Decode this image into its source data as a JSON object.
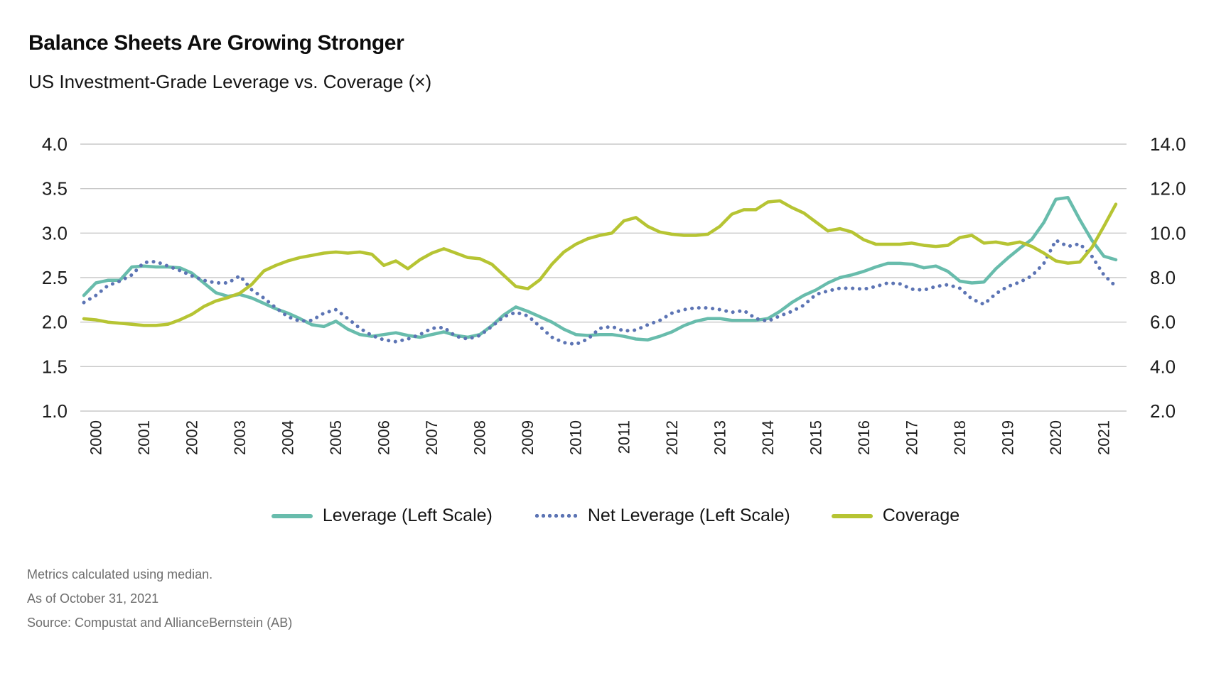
{
  "header": {
    "title": "Balance Sheets Are Growing Stronger",
    "subtitle": "US Investment-Grade Leverage vs. Coverage (×)"
  },
  "footnotes": [
    "Metrics calculated using median.",
    "As of October 31, 2021",
    "Source: Compustat and AllianceBernstein (AB)"
  ],
  "chart_data": {
    "type": "line",
    "title": "Balance Sheets Are Growing Stronger",
    "subtitle": "US Investment-Grade Leverage vs. Coverage (×)",
    "grid": true,
    "legend_position": "bottom",
    "x": {
      "frequency": "quarterly",
      "start": "2000Q1",
      "end": "2021Q3",
      "year_tick_labels": [
        "2000",
        "2001",
        "2002",
        "2003",
        "2004",
        "2005",
        "2006",
        "2007",
        "2008",
        "2009",
        "2010",
        "2011",
        "2012",
        "2013",
        "2014",
        "2015",
        "2016",
        "2017",
        "2018",
        "2019",
        "2020",
        "2021"
      ]
    },
    "left_axis": {
      "range": [
        1.0,
        4.0
      ],
      "tick_values": [
        4.0,
        3.5,
        3.0,
        2.5,
        2.0,
        1.5,
        1.0
      ],
      "tick_labels": [
        "4.0",
        "3.5",
        "3.0",
        "2.5",
        "2.0",
        "1.5",
        "1.0"
      ]
    },
    "right_axis": {
      "range": [
        2.0,
        14.0
      ],
      "tick_values": [
        14.0,
        12.0,
        10.0,
        8.0,
        6.0,
        4.0,
        2.0
      ],
      "tick_labels": [
        "14.0",
        "12.0",
        "10.0",
        "8.0",
        "6.0",
        "4.0",
        "2.0"
      ],
      "mapping_note": "right gridlines share left gridlines: right = 4 x left - 2"
    },
    "colors": {
      "leverage": "#68BCAC",
      "net_leverage": "#5C74B4",
      "coverage": "#B6C433",
      "gridline": "#C9C9C9"
    },
    "series": [
      {
        "name": "Leverage (Left Scale)",
        "axis": "left",
        "style": "solid",
        "color": "#68BCAC",
        "values": [
          2.3,
          2.44,
          2.47,
          2.47,
          2.62,
          2.63,
          2.62,
          2.62,
          2.61,
          2.55,
          2.44,
          2.33,
          2.29,
          2.31,
          2.27,
          2.21,
          2.15,
          2.1,
          2.04,
          1.97,
          1.95,
          2.01,
          1.92,
          1.86,
          1.84,
          1.86,
          1.88,
          1.85,
          1.83,
          1.86,
          1.89,
          1.85,
          1.83,
          1.86,
          1.96,
          2.08,
          2.17,
          2.12,
          2.06,
          2.0,
          1.92,
          1.86,
          1.85,
          1.86,
          1.86,
          1.84,
          1.81,
          1.8,
          1.84,
          1.89,
          1.96,
          2.01,
          2.04,
          2.04,
          2.02,
          2.02,
          2.02,
          2.04,
          2.12,
          2.22,
          2.3,
          2.36,
          2.44,
          2.5,
          2.53,
          2.57,
          2.62,
          2.66,
          2.66,
          2.65,
          2.61,
          2.63,
          2.57,
          2.46,
          2.44,
          2.45,
          2.6,
          2.72,
          2.83,
          2.93,
          3.12,
          3.38,
          3.4,
          3.15,
          2.92,
          2.74,
          2.7
        ]
      },
      {
        "name": "Net Leverage (Left Scale)",
        "axis": "left",
        "style": "dotted",
        "color": "#5C74B4",
        "values": [
          2.22,
          2.3,
          2.41,
          2.46,
          2.53,
          2.67,
          2.68,
          2.63,
          2.58,
          2.52,
          2.47,
          2.44,
          2.44,
          2.52,
          2.36,
          2.27,
          2.16,
          2.06,
          2.01,
          2.02,
          2.1,
          2.14,
          2.04,
          1.93,
          1.85,
          1.8,
          1.78,
          1.81,
          1.86,
          1.93,
          1.94,
          1.84,
          1.81,
          1.85,
          1.95,
          2.06,
          2.11,
          2.07,
          1.95,
          1.83,
          1.77,
          1.75,
          1.81,
          1.93,
          1.95,
          1.9,
          1.91,
          1.97,
          2.02,
          2.1,
          2.14,
          2.16,
          2.16,
          2.14,
          2.11,
          2.13,
          2.04,
          2.01,
          2.07,
          2.12,
          2.19,
          2.31,
          2.35,
          2.38,
          2.38,
          2.37,
          2.4,
          2.44,
          2.43,
          2.37,
          2.36,
          2.4,
          2.42,
          2.38,
          2.26,
          2.2,
          2.32,
          2.4,
          2.45,
          2.52,
          2.66,
          2.92,
          2.85,
          2.88,
          2.74,
          2.53,
          2.4
        ]
      },
      {
        "name": "Coverage",
        "axis": "right",
        "style": "solid",
        "color": "#B6C433",
        "values": [
          6.15,
          6.1,
          6.0,
          5.95,
          5.9,
          5.85,
          5.85,
          5.9,
          6.1,
          6.35,
          6.7,
          6.95,
          7.1,
          7.3,
          7.7,
          8.3,
          8.55,
          8.75,
          8.9,
          9.0,
          9.1,
          9.15,
          9.1,
          9.15,
          9.05,
          8.55,
          8.75,
          8.4,
          8.8,
          9.1,
          9.3,
          9.1,
          8.9,
          8.85,
          8.6,
          8.1,
          7.6,
          7.5,
          7.9,
          8.6,
          9.15,
          9.5,
          9.75,
          9.9,
          10.0,
          10.55,
          10.7,
          10.3,
          10.05,
          9.95,
          9.9,
          9.9,
          9.95,
          10.3,
          10.85,
          11.05,
          11.05,
          11.4,
          11.45,
          11.15,
          10.9,
          10.5,
          10.1,
          10.2,
          10.05,
          9.7,
          9.5,
          9.5,
          9.5,
          9.55,
          9.45,
          9.4,
          9.45,
          9.8,
          9.9,
          9.55,
          9.6,
          9.5,
          9.6,
          9.4,
          9.1,
          8.75,
          8.65,
          8.7,
          9.35,
          10.3,
          11.3
        ]
      }
    ]
  }
}
